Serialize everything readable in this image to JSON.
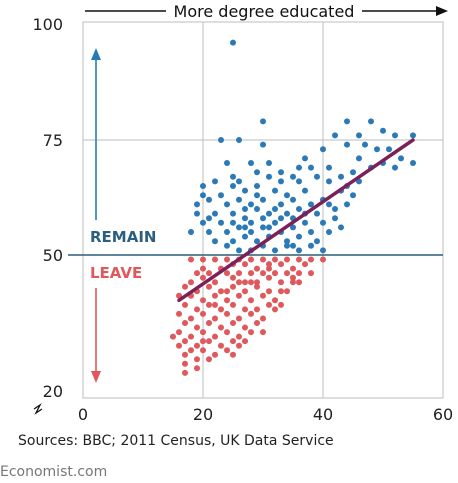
{
  "colors": {
    "remain": "#2b7ab7",
    "leave": "#e0585b",
    "trend": "#7b2158",
    "threshold": "#2c5f7f",
    "grid": "#bdbdbd",
    "panel": "#ffffff"
  },
  "source_text": "Sources: BBC; 2011 Census, UK Data Service",
  "brand_text": "Economist.com",
  "chart_data": {
    "type": "scatter",
    "title": "More degree educated",
    "xlabel": "",
    "ylabel": "",
    "xlim": [
      0,
      60
    ],
    "ylim": [
      20,
      100
    ],
    "x_ticks": [
      "0",
      "20",
      "40",
      "60"
    ],
    "y_ticks": [
      "20",
      "50",
      "75",
      "100"
    ],
    "y_tick_values": [
      20,
      50,
      75,
      100
    ],
    "axis_break": true,
    "grid": true,
    "threshold": 50,
    "annotations": {
      "above": "REMAIN",
      "below": "LEAVE"
    },
    "trend": {
      "start": [
        16,
        40
      ],
      "end": [
        55,
        75
      ]
    },
    "series": [
      {
        "points": [
          [
            25,
            96
          ],
          [
            30,
            79
          ],
          [
            44,
            79
          ],
          [
            48,
            79
          ],
          [
            50,
            77
          ],
          [
            52,
            76
          ],
          [
            55,
            76
          ],
          [
            46,
            76
          ],
          [
            42,
            76
          ],
          [
            23,
            75
          ],
          [
            26,
            75
          ],
          [
            30,
            74
          ],
          [
            40,
            73
          ],
          [
            44,
            74
          ],
          [
            47,
            74
          ],
          [
            49,
            73
          ],
          [
            51,
            73
          ],
          [
            53,
            71
          ],
          [
            55,
            70
          ],
          [
            37,
            71
          ],
          [
            31,
            70
          ],
          [
            28,
            70
          ],
          [
            24,
            70
          ],
          [
            22,
            66
          ],
          [
            29,
            68
          ],
          [
            33,
            68
          ],
          [
            35,
            67
          ],
          [
            38,
            69
          ],
          [
            41,
            69
          ],
          [
            45,
            68
          ],
          [
            48,
            69
          ],
          [
            50,
            70
          ],
          [
            52,
            69
          ],
          [
            26,
            66
          ],
          [
            31,
            67
          ],
          [
            36,
            66
          ],
          [
            39,
            67
          ],
          [
            43,
            67
          ],
          [
            46,
            66
          ],
          [
            20,
            63
          ],
          [
            23,
            63
          ],
          [
            25,
            65
          ],
          [
            27,
            64
          ],
          [
            29,
            63
          ],
          [
            32,
            64
          ],
          [
            34,
            63
          ],
          [
            37,
            64
          ],
          [
            40,
            62
          ],
          [
            43,
            64
          ],
          [
            45,
            63
          ],
          [
            19,
            61
          ],
          [
            21,
            62
          ],
          [
            24,
            61
          ],
          [
            26,
            62
          ],
          [
            28,
            61
          ],
          [
            30,
            62
          ],
          [
            33,
            61
          ],
          [
            35,
            62
          ],
          [
            38,
            61
          ],
          [
            41,
            61
          ],
          [
            44,
            61
          ],
          [
            19,
            59
          ],
          [
            22,
            59
          ],
          [
            25,
            59
          ],
          [
            27,
            60
          ],
          [
            29,
            60
          ],
          [
            31,
            59
          ],
          [
            34,
            59
          ],
          [
            36,
            60
          ],
          [
            39,
            59
          ],
          [
            42,
            58
          ],
          [
            20,
            57
          ],
          [
            23,
            57
          ],
          [
            25,
            57
          ],
          [
            27,
            58
          ],
          [
            30,
            58
          ],
          [
            32,
            57
          ],
          [
            35,
            58
          ],
          [
            37,
            57
          ],
          [
            40,
            57
          ],
          [
            18,
            55
          ],
          [
            21,
            55
          ],
          [
            24,
            55
          ],
          [
            26,
            56
          ],
          [
            28,
            55
          ],
          [
            30,
            56
          ],
          [
            33,
            55
          ],
          [
            35,
            56
          ],
          [
            38,
            55
          ],
          [
            41,
            55
          ],
          [
            22,
            53
          ],
          [
            25,
            53
          ],
          [
            27,
            54
          ],
          [
            29,
            53
          ],
          [
            31,
            54
          ],
          [
            34,
            53
          ],
          [
            36,
            54
          ],
          [
            39,
            53
          ],
          [
            24,
            52
          ],
          [
            28,
            51
          ],
          [
            32,
            51
          ],
          [
            36,
            51
          ],
          [
            26,
            51
          ],
          [
            30,
            52
          ],
          [
            34,
            52
          ],
          [
            38,
            52
          ],
          [
            40,
            51
          ],
          [
            29,
            65
          ],
          [
            33,
            66
          ],
          [
            36,
            69
          ],
          [
            46,
            71
          ],
          [
            20,
            65
          ],
          [
            25,
            67
          ],
          [
            27,
            56
          ],
          [
            31,
            56
          ],
          [
            33,
            58
          ],
          [
            43,
            56
          ],
          [
            37,
            59
          ],
          [
            35,
            52
          ],
          [
            21,
            58
          ],
          [
            28,
            57
          ],
          [
            42,
            60
          ],
          [
            32,
            60
          ],
          [
            41,
            66
          ],
          [
            44,
            65
          ]
        ]
      },
      {
        "points": [
          [
            18,
            49
          ],
          [
            20,
            49
          ],
          [
            22,
            49
          ],
          [
            24,
            49
          ],
          [
            26,
            49
          ],
          [
            28,
            49
          ],
          [
            30,
            49
          ],
          [
            32,
            49
          ],
          [
            34,
            49
          ],
          [
            36,
            49
          ],
          [
            38,
            49
          ],
          [
            40,
            49
          ],
          [
            20,
            47
          ],
          [
            23,
            47
          ],
          [
            25,
            48
          ],
          [
            27,
            48
          ],
          [
            29,
            47
          ],
          [
            31,
            48
          ],
          [
            33,
            48
          ],
          [
            35,
            47
          ],
          [
            37,
            48
          ],
          [
            19,
            46
          ],
          [
            21,
            46
          ],
          [
            24,
            46
          ],
          [
            26,
            46
          ],
          [
            28,
            46
          ],
          [
            30,
            46
          ],
          [
            32,
            46
          ],
          [
            34,
            46
          ],
          [
            36,
            46
          ],
          [
            18,
            44
          ],
          [
            20,
            45
          ],
          [
            22,
            44
          ],
          [
            25,
            45
          ],
          [
            27,
            44
          ],
          [
            29,
            44
          ],
          [
            31,
            45
          ],
          [
            33,
            44
          ],
          [
            35,
            44
          ],
          [
            17,
            43
          ],
          [
            19,
            42
          ],
          [
            21,
            43
          ],
          [
            23,
            42
          ],
          [
            25,
            43
          ],
          [
            27,
            42
          ],
          [
            29,
            43
          ],
          [
            31,
            42
          ],
          [
            33,
            42
          ],
          [
            16,
            41
          ],
          [
            18,
            41
          ],
          [
            20,
            40
          ],
          [
            22,
            41
          ],
          [
            24,
            40
          ],
          [
            26,
            41
          ],
          [
            28,
            40
          ],
          [
            30,
            41
          ],
          [
            32,
            40
          ],
          [
            17,
            39
          ],
          [
            19,
            38
          ],
          [
            21,
            39
          ],
          [
            23,
            38
          ],
          [
            25,
            39
          ],
          [
            27,
            38
          ],
          [
            29,
            38
          ],
          [
            31,
            39
          ],
          [
            16,
            37
          ],
          [
            18,
            36
          ],
          [
            20,
            37
          ],
          [
            22,
            36
          ],
          [
            24,
            37
          ],
          [
            26,
            36
          ],
          [
            28,
            37
          ],
          [
            30,
            36
          ],
          [
            17,
            35
          ],
          [
            19,
            34
          ],
          [
            21,
            35
          ],
          [
            23,
            34
          ],
          [
            25,
            35
          ],
          [
            27,
            34
          ],
          [
            29,
            35
          ],
          [
            16,
            33
          ],
          [
            18,
            32
          ],
          [
            20,
            33
          ],
          [
            22,
            32
          ],
          [
            24,
            33
          ],
          [
            26,
            32
          ],
          [
            28,
            33
          ],
          [
            17,
            31
          ],
          [
            19,
            30
          ],
          [
            21,
            31
          ],
          [
            23,
            30
          ],
          [
            25,
            31
          ],
          [
            16,
            30
          ],
          [
            18,
            29
          ],
          [
            20,
            29
          ],
          [
            22,
            28
          ],
          [
            24,
            29
          ],
          [
            17,
            28
          ],
          [
            19,
            27
          ],
          [
            21,
            27
          ],
          [
            17,
            26
          ],
          [
            19,
            25
          ],
          [
            17,
            24
          ],
          [
            20,
            31
          ],
          [
            26,
            30
          ],
          [
            30,
            33
          ],
          [
            32,
            38
          ],
          [
            34,
            42
          ],
          [
            36,
            44
          ],
          [
            38,
            46
          ],
          [
            25,
            28
          ],
          [
            27,
            31
          ],
          [
            15,
            32
          ],
          [
            28,
            44
          ],
          [
            31,
            47
          ],
          [
            33,
            39
          ],
          [
            35,
            45
          ],
          [
            22,
            39
          ],
          [
            24,
            42
          ],
          [
            26,
            44
          ]
        ]
      }
    ]
  }
}
